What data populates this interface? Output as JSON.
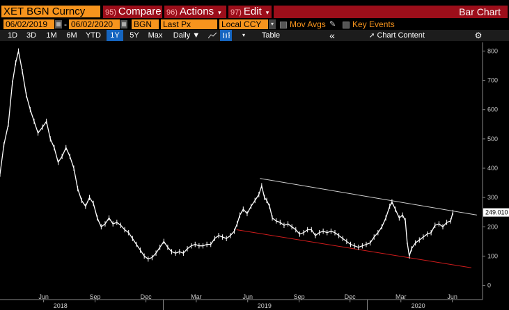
{
  "header": {
    "ticker": "XET BGN Curncy",
    "compare": {
      "num": "95)",
      "label": "Compare"
    },
    "actions": {
      "num": "96)",
      "label": "Actions",
      "caret": "▾"
    },
    "edit": {
      "num": "97)",
      "label": "Edit",
      "caret": "▾"
    },
    "title": "Bar Chart"
  },
  "fields": {
    "start_date": "06/02/2019",
    "end_date": "06/02/2020",
    "date_sep": "-",
    "source": "BGN",
    "price_field": "Last Px",
    "currency": "Local CCY",
    "mov_avgs": "Mov Avgs",
    "key_events": "Key Events"
  },
  "toolbar": {
    "periods": [
      "1D",
      "3D",
      "1M",
      "6M",
      "YTD",
      "1Y",
      "5Y",
      "Max"
    ],
    "selected_period": "1Y",
    "frequency": "Daily ▼",
    "table_label": "Table",
    "collapse": "«",
    "chart_content": "Chart Content",
    "settings": "⚙"
  },
  "colors": {
    "accent_orange": "#f7941d",
    "menu_red": "#9c0e1a",
    "upper_trendline": "#d0d0d0",
    "lower_trendline": "#d11c1c",
    "price_line": "#ffffff"
  },
  "chart_data": {
    "type": "line",
    "last_price_label": "249.010",
    "yticks": [
      0,
      100,
      200,
      300,
      400,
      500,
      600,
      700,
      800
    ],
    "ylim": [
      -20,
      820
    ],
    "xlim": [
      "2018-03-15",
      "2020-07-25"
    ],
    "month_ticks": [
      {
        "date": "2018-06-01",
        "label": "Jun"
      },
      {
        "date": "2018-09-01",
        "label": "Sep"
      },
      {
        "date": "2018-12-01",
        "label": "Dec"
      },
      {
        "date": "2019-03-01",
        "label": "Mar"
      },
      {
        "date": "2019-06-01",
        "label": "Jun"
      },
      {
        "date": "2019-09-01",
        "label": "Sep"
      },
      {
        "date": "2019-12-01",
        "label": "Dec"
      },
      {
        "date": "2020-03-01",
        "label": "Mar"
      },
      {
        "date": "2020-06-01",
        "label": "Jun"
      }
    ],
    "year_labels": [
      {
        "date": "2018-07-01",
        "label": "2018"
      },
      {
        "date": "2019-07-01",
        "label": "2019"
      },
      {
        "date": "2020-04-01",
        "label": "2020"
      }
    ],
    "year_dividers": [
      "2019-01-01",
      "2020-01-01"
    ],
    "series": [
      {
        "points": [
          [
            "2018-03-15",
            380
          ],
          [
            "2018-03-22",
            480
          ],
          [
            "2018-03-30",
            550
          ],
          [
            "2018-04-06",
            690
          ],
          [
            "2018-04-12",
            760
          ],
          [
            "2018-04-17",
            800
          ],
          [
            "2018-04-24",
            730
          ],
          [
            "2018-05-01",
            650
          ],
          [
            "2018-05-08",
            600
          ],
          [
            "2018-05-15",
            560
          ],
          [
            "2018-05-22",
            520
          ],
          [
            "2018-05-30",
            540
          ],
          [
            "2018-06-06",
            560
          ],
          [
            "2018-06-13",
            500
          ],
          [
            "2018-06-20",
            470
          ],
          [
            "2018-06-27",
            420
          ],
          [
            "2018-07-04",
            440
          ],
          [
            "2018-07-11",
            470
          ],
          [
            "2018-07-18",
            440
          ],
          [
            "2018-07-25",
            400
          ],
          [
            "2018-08-01",
            330
          ],
          [
            "2018-08-08",
            290
          ],
          [
            "2018-08-15",
            270
          ],
          [
            "2018-08-22",
            300
          ],
          [
            "2018-08-29",
            280
          ],
          [
            "2018-09-05",
            230
          ],
          [
            "2018-09-12",
            200
          ],
          [
            "2018-09-19",
            210
          ],
          [
            "2018-09-26",
            230
          ],
          [
            "2018-10-03",
            210
          ],
          [
            "2018-10-10",
            215
          ],
          [
            "2018-10-17",
            205
          ],
          [
            "2018-10-24",
            190
          ],
          [
            "2018-10-31",
            180
          ],
          [
            "2018-11-07",
            160
          ],
          [
            "2018-11-14",
            140
          ],
          [
            "2018-11-21",
            120
          ],
          [
            "2018-11-28",
            100
          ],
          [
            "2018-12-05",
            90
          ],
          [
            "2018-12-12",
            95
          ],
          [
            "2018-12-19",
            110
          ],
          [
            "2018-12-26",
            130
          ],
          [
            "2019-01-02",
            150
          ],
          [
            "2019-01-09",
            130
          ],
          [
            "2019-01-16",
            115
          ],
          [
            "2019-01-23",
            110
          ],
          [
            "2019-01-30",
            115
          ],
          [
            "2019-02-06",
            110
          ],
          [
            "2019-02-13",
            125
          ],
          [
            "2019-02-20",
            135
          ],
          [
            "2019-02-27",
            140
          ],
          [
            "2019-03-06",
            135
          ],
          [
            "2019-03-13",
            135
          ],
          [
            "2019-03-20",
            140
          ],
          [
            "2019-03-27",
            140
          ],
          [
            "2019-04-03",
            160
          ],
          [
            "2019-04-10",
            170
          ],
          [
            "2019-04-17",
            165
          ],
          [
            "2019-04-24",
            160
          ],
          [
            "2019-05-01",
            170
          ],
          [
            "2019-05-08",
            185
          ],
          [
            "2019-05-13",
            210
          ],
          [
            "2019-05-18",
            240
          ],
          [
            "2019-05-24",
            260
          ],
          [
            "2019-05-31",
            245
          ],
          [
            "2019-06-07",
            270
          ],
          [
            "2019-06-14",
            290
          ],
          [
            "2019-06-21",
            310
          ],
          [
            "2019-06-26",
            340
          ],
          [
            "2019-07-01",
            300
          ],
          [
            "2019-07-05",
            290
          ],
          [
            "2019-07-10",
            270
          ],
          [
            "2019-07-15",
            230
          ],
          [
            "2019-07-22",
            220
          ],
          [
            "2019-07-29",
            215
          ],
          [
            "2019-08-05",
            205
          ],
          [
            "2019-08-12",
            210
          ],
          [
            "2019-08-19",
            200
          ],
          [
            "2019-08-26",
            190
          ],
          [
            "2019-09-02",
            175
          ],
          [
            "2019-09-09",
            180
          ],
          [
            "2019-09-16",
            190
          ],
          [
            "2019-09-23",
            190
          ],
          [
            "2019-09-30",
            170
          ],
          [
            "2019-10-07",
            180
          ],
          [
            "2019-10-14",
            185
          ],
          [
            "2019-10-21",
            180
          ],
          [
            "2019-10-28",
            185
          ],
          [
            "2019-11-04",
            180
          ],
          [
            "2019-11-11",
            170
          ],
          [
            "2019-11-18",
            160
          ],
          [
            "2019-11-25",
            150
          ],
          [
            "2019-12-02",
            140
          ],
          [
            "2019-12-09",
            135
          ],
          [
            "2019-12-16",
            130
          ],
          [
            "2019-12-23",
            135
          ],
          [
            "2019-12-30",
            140
          ],
          [
            "2020-01-06",
            145
          ],
          [
            "2020-01-13",
            165
          ],
          [
            "2020-01-20",
            180
          ],
          [
            "2020-01-27",
            200
          ],
          [
            "2020-02-03",
            230
          ],
          [
            "2020-02-10",
            270
          ],
          [
            "2020-02-14",
            285
          ],
          [
            "2020-02-20",
            260
          ],
          [
            "2020-02-27",
            230
          ],
          [
            "2020-03-04",
            240
          ],
          [
            "2020-03-09",
            220
          ],
          [
            "2020-03-12",
            150
          ],
          [
            "2020-03-16",
            100
          ],
          [
            "2020-03-20",
            125
          ],
          [
            "2020-03-27",
            145
          ],
          [
            "2020-04-03",
            155
          ],
          [
            "2020-04-10",
            165
          ],
          [
            "2020-04-17",
            175
          ],
          [
            "2020-04-24",
            180
          ],
          [
            "2020-05-01",
            205
          ],
          [
            "2020-05-08",
            210
          ],
          [
            "2020-05-15",
            200
          ],
          [
            "2020-05-22",
            215
          ],
          [
            "2020-05-29",
            220
          ],
          [
            "2020-06-02",
            249
          ]
        ]
      }
    ],
    "trendlines": [
      {
        "color": "#d0d0d0",
        "points": [
          [
            "2019-06-23",
            365
          ],
          [
            "2020-07-15",
            240
          ]
        ]
      },
      {
        "color": "#d11c1c",
        "points": [
          [
            "2019-05-12",
            190
          ],
          [
            "2020-07-05",
            60
          ]
        ]
      }
    ]
  }
}
